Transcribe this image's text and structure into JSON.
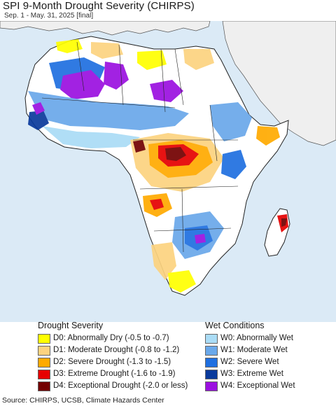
{
  "header": {
    "title": "SPI 9-Month Drought Severity (CHIRPS)",
    "subtitle": "Sep. 1 - May. 31, 2025 [final]"
  },
  "map": {
    "ocean_color": "#dbeaf6",
    "land_color": "#ffffff",
    "outside_region_color": "#efefef",
    "border_color": "#222222"
  },
  "legend": {
    "drought": {
      "heading": "Drought Severity",
      "items": [
        {
          "label": "D0: Abnormally Dry (-0.5 to -0.7)",
          "color": "#ffff00"
        },
        {
          "label": "D1: Moderate Drought (-0.8 to -1.2)",
          "color": "#fcd37f"
        },
        {
          "label": "D2: Severe Drought (-1.3 to -1.5)",
          "color": "#ffaa00"
        },
        {
          "label": "D3: Extreme Drought (-1.6 to -1.9)",
          "color": "#e60000"
        },
        {
          "label": "D4: Exceptional Drought (-2.0 or less)",
          "color": "#730000"
        }
      ]
    },
    "wet": {
      "heading": "Wet Conditions",
      "items": [
        {
          "label": "W0: Abnormally Wet",
          "color": "#aadcf6"
        },
        {
          "label": "W1: Moderate Wet",
          "color": "#6aa8ea"
        },
        {
          "label": "W2: Severe Wet",
          "color": "#1f6fe0"
        },
        {
          "label": "W3: Extreme Wet",
          "color": "#0a3a9c"
        },
        {
          "label": "W4: Exceptional Wet",
          "color": "#9b10e0"
        }
      ]
    }
  },
  "footer": {
    "source": "Source: CHIRPS, UCSB, Climate Hazards Center"
  }
}
